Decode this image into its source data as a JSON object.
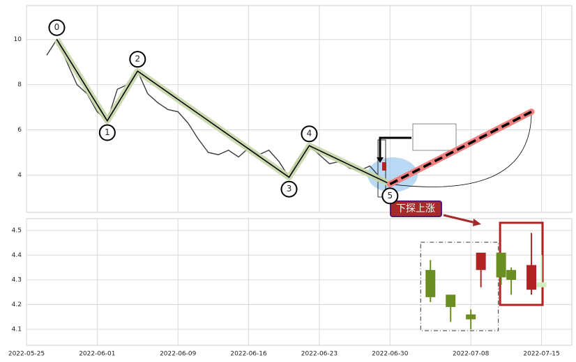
{
  "chart_data": [
    {
      "type": "line",
      "xlim": [
        "2022-05-25",
        "2022-07-18"
      ],
      "xticks": [
        "2022-05-25",
        "2022-06-01",
        "2022-06-09",
        "2022-06-16",
        "2022-06-23",
        "2022-06-30",
        "2022-07-08",
        "2022-07-15"
      ],
      "ylim": [
        2.35,
        11.5
      ],
      "yticks": [
        4,
        6,
        8,
        10
      ],
      "grid": true,
      "x": [
        "2022-05-27",
        "2022-05-28",
        "2022-05-29",
        "2022-05-30",
        "2022-05-31",
        "2022-06-01",
        "2022-06-02",
        "2022-06-03",
        "2022-06-04",
        "2022-06-05",
        "2022-06-06",
        "2022-06-07",
        "2022-06-08",
        "2022-06-09",
        "2022-06-10",
        "2022-06-11",
        "2022-06-12",
        "2022-06-13",
        "2022-06-14",
        "2022-06-15",
        "2022-06-16",
        "2022-06-17",
        "2022-06-18",
        "2022-06-19",
        "2022-06-20",
        "2022-06-21",
        "2022-06-22",
        "2022-06-23",
        "2022-06-24",
        "2022-06-25",
        "2022-06-26",
        "2022-06-27",
        "2022-06-28",
        "2022-06-29",
        "2022-06-30"
      ],
      "series": [
        {
          "color": "#3a3a3a",
          "values": [
            9.3,
            10.0,
            9.0,
            8.0,
            7.6,
            6.8,
            6.4,
            7.8,
            8.0,
            8.6,
            7.6,
            7.2,
            6.9,
            6.8,
            6.3,
            5.6,
            5.0,
            4.9,
            5.1,
            4.8,
            5.2,
            4.9,
            5.1,
            4.6,
            3.9,
            4.8,
            5.3,
            4.9,
            4.5,
            4.6,
            4.3,
            4.2,
            4.4,
            3.9,
            3.6
          ]
        }
      ],
      "waves": {
        "labels": [
          "0",
          "1",
          "2",
          "3",
          "4",
          "5"
        ],
        "x": [
          "2022-05-28",
          "2022-06-02",
          "2022-06-05",
          "2022-06-20",
          "2022-06-22",
          "2022-06-30"
        ],
        "values": [
          10.0,
          6.4,
          8.6,
          3.9,
          5.3,
          3.6
        ],
        "color": "#c5d6a8"
      },
      "projection": {
        "x": [
          "2022-06-30",
          "2022-07-14"
        ],
        "values": [
          3.6,
          6.8
        ],
        "color": "#f08080"
      },
      "annotation": "下探上涨"
    },
    {
      "type": "candlestick",
      "xlim": [
        "2022-05-25",
        "2022-07-18"
      ],
      "xticks": [
        "2022-05-25",
        "2022-06-01",
        "2022-06-09",
        "2022-06-16",
        "2022-06-23",
        "2022-06-30",
        "2022-07-08",
        "2022-07-15"
      ],
      "ylim": [
        4.035,
        4.548
      ],
      "yticks": [
        4.1,
        4.2,
        4.3,
        4.4,
        4.5
      ],
      "grid": true,
      "x": [
        "2022-07-04",
        "2022-07-06",
        "2022-07-08",
        "2022-07-09",
        "2022-07-11",
        "2022-07-12",
        "2022-07-14",
        "2022-07-15"
      ],
      "open": [
        4.34,
        4.24,
        4.16,
        4.34,
        4.41,
        4.34,
        4.26,
        4.29
      ],
      "high": [
        4.38,
        4.24,
        4.18,
        4.41,
        4.41,
        4.35,
        4.49,
        4.4
      ],
      "low": [
        4.21,
        4.13,
        4.1,
        4.27,
        4.28,
        4.24,
        4.24,
        4.27
      ],
      "close": [
        4.23,
        4.19,
        4.14,
        4.41,
        4.31,
        4.3,
        4.36,
        4.27
      ],
      "colors": [
        "#6b8e23",
        "#6b8e23",
        "#6b8e23",
        "#b22222",
        "#6b8e23",
        "#6b8e23",
        "#b22222",
        "#ccf0bf"
      ]
    }
  ]
}
